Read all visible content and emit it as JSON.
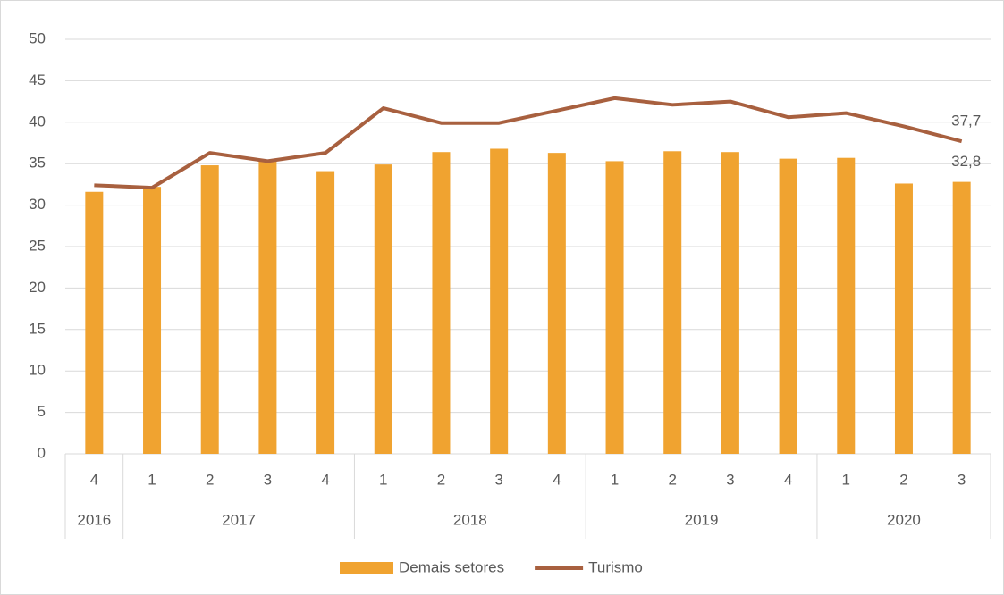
{
  "chart_data": {
    "type": "bar-line",
    "categories": [
      "4",
      "1",
      "2",
      "3",
      "4",
      "1",
      "2",
      "3",
      "4",
      "1",
      "2",
      "3",
      "4",
      "1",
      "2",
      "3"
    ],
    "groups": [
      {
        "name": "2016",
        "span": 1
      },
      {
        "name": "2017",
        "span": 4
      },
      {
        "name": "2018",
        "span": 4
      },
      {
        "name": "2019",
        "span": 4
      },
      {
        "name": "2020",
        "span": 3
      }
    ],
    "series": [
      {
        "name": "Demais setores",
        "type": "bar",
        "color": "#f0a330",
        "values": [
          31.6,
          32.2,
          34.8,
          35.3,
          34.1,
          34.9,
          36.4,
          36.8,
          36.3,
          35.3,
          36.5,
          36.4,
          35.6,
          35.7,
          32.6,
          32.8
        ],
        "value_labels": [
          null,
          null,
          null,
          null,
          null,
          null,
          null,
          null,
          null,
          null,
          null,
          null,
          null,
          null,
          null,
          "32,8"
        ]
      },
      {
        "name": "Turismo",
        "type": "line",
        "color": "#a8603f",
        "values": [
          32.4,
          32.1,
          36.3,
          35.3,
          36.3,
          41.7,
          39.9,
          39.9,
          41.4,
          42.9,
          42.1,
          42.5,
          40.6,
          41.1,
          39.5,
          37.7
        ],
        "value_labels": [
          null,
          null,
          null,
          null,
          null,
          null,
          null,
          null,
          null,
          null,
          null,
          null,
          null,
          null,
          null,
          "37,7"
        ]
      }
    ],
    "ylim": [
      0,
      50
    ],
    "yticks": [
      0,
      5,
      10,
      15,
      20,
      25,
      30,
      35,
      40,
      45,
      50
    ],
    "grid": true,
    "legend": "bottom"
  }
}
